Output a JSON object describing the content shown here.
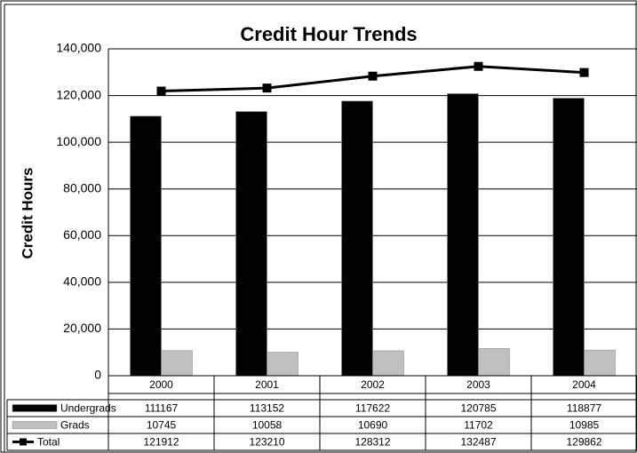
{
  "chart_data": {
    "type": "bar",
    "title": "Credit Hour Trends",
    "y_label": "Credit Hours",
    "categories": [
      "2000",
      "2001",
      "2002",
      "2003",
      "2004"
    ],
    "series": [
      {
        "name": "Undergrads",
        "type": "bar",
        "color": "#000000",
        "values": [
          111167,
          113152,
          117622,
          120785,
          118877
        ]
      },
      {
        "name": "Grads",
        "type": "bar",
        "color": "#c0c0c0",
        "values": [
          10745,
          10058,
          10690,
          11702,
          10985
        ]
      },
      {
        "name": "Total",
        "type": "line",
        "color": "#000000",
        "values": [
          121912,
          123210,
          128312,
          132487,
          129862
        ]
      }
    ],
    "ylim": [
      0,
      140000
    ],
    "yticks": [
      0,
      {
        "value": 20000,
        "label": "20,000"
      },
      {
        "value": 40000,
        "label": "40,000"
      },
      {
        "value": 60000,
        "label": "60,000"
      },
      {
        "value": 80000,
        "label": "80,000"
      },
      {
        "value": 100000,
        "label": "100,000"
      },
      {
        "value": 120000,
        "label": "120,000"
      },
      {
        "value": 140000,
        "label": "140,000"
      }
    ],
    "grid": true
  }
}
